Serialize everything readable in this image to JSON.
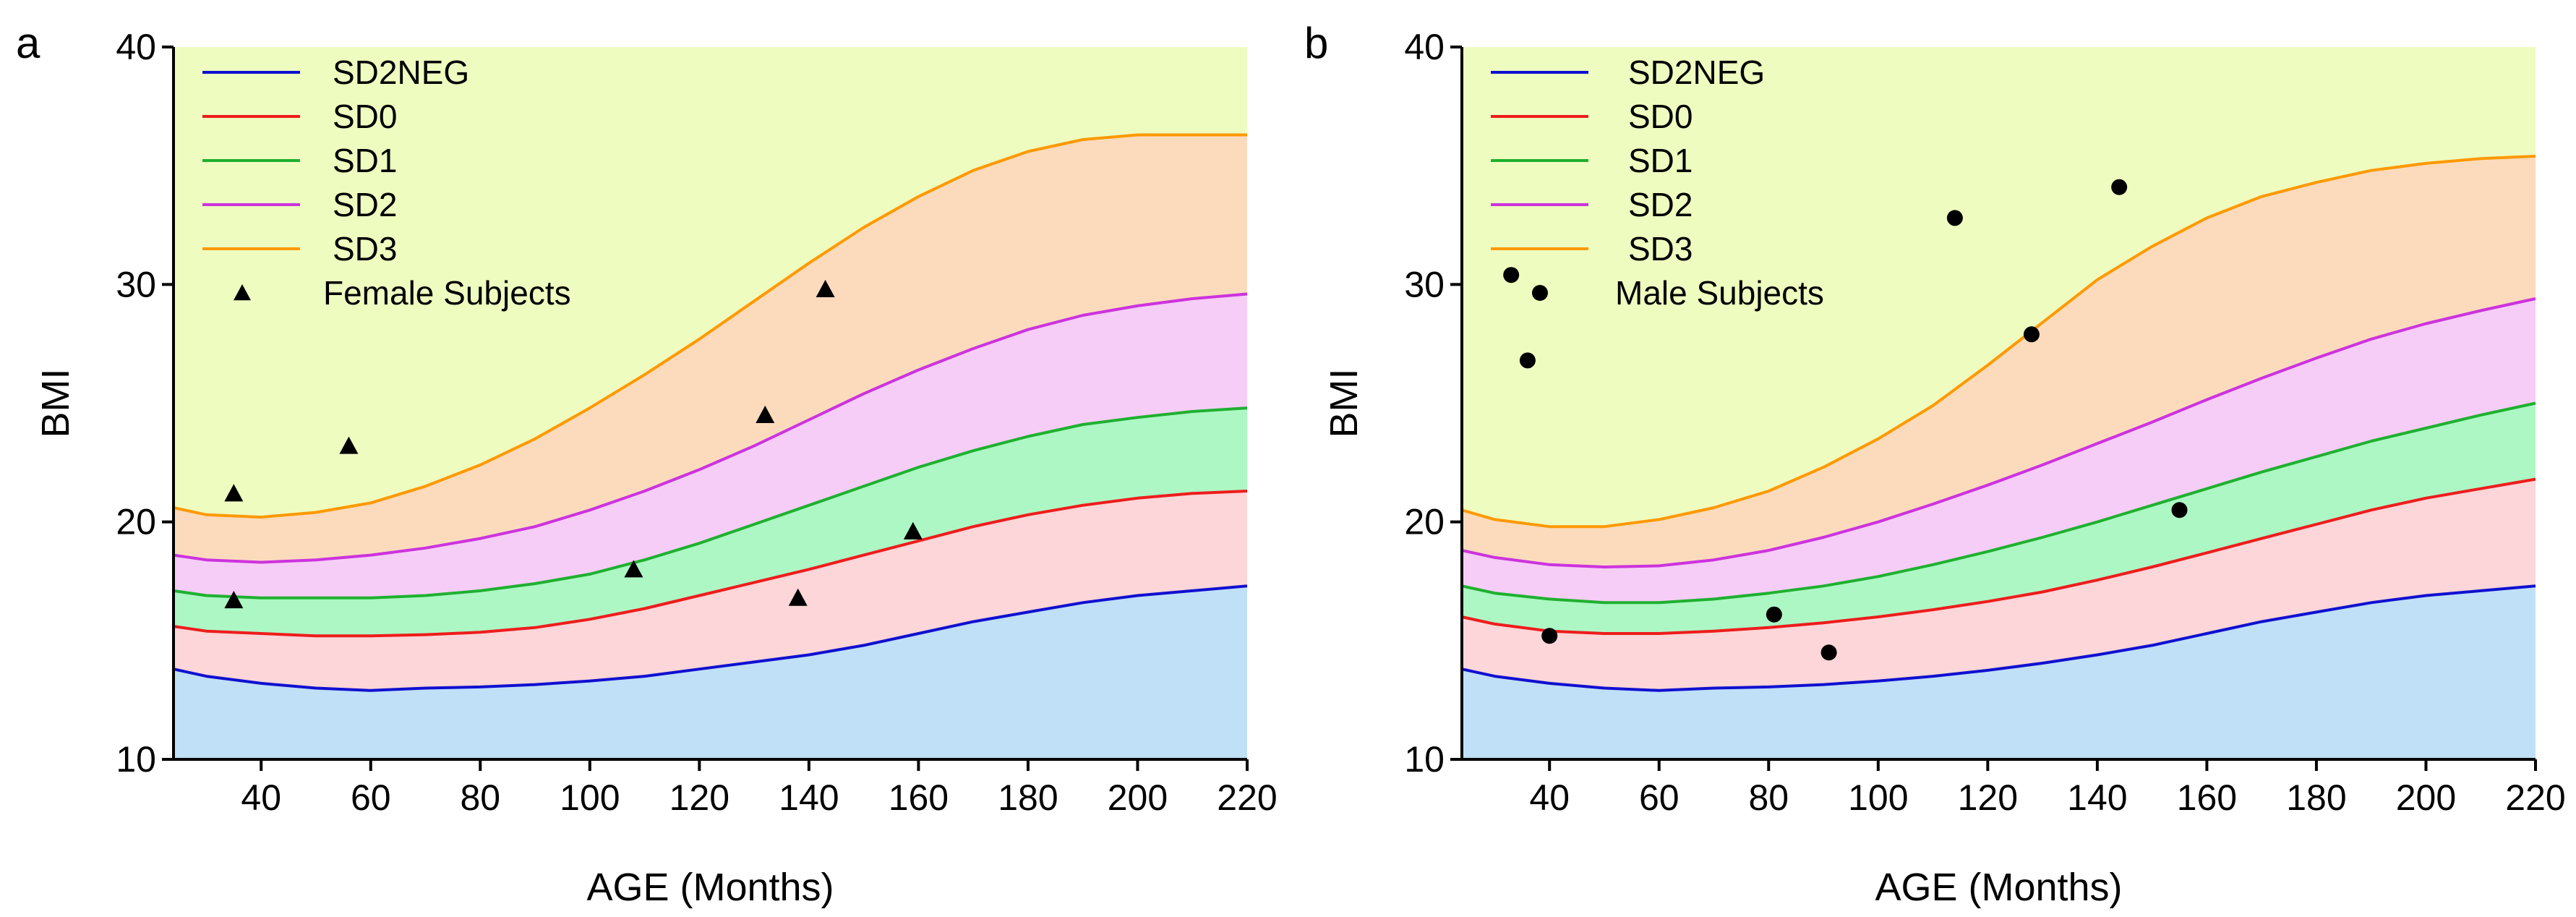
{
  "chart_data": [
    {
      "type": "area",
      "panel_label": "a",
      "xlabel": "AGE (Months)",
      "ylabel": "BMI",
      "xlim": [
        24,
        220
      ],
      "ylim": [
        10,
        40
      ],
      "xticks": [
        40,
        60,
        80,
        100,
        120,
        140,
        160,
        180,
        200,
        220
      ],
      "yticks": [
        10,
        20,
        30,
        40
      ],
      "legend_position": "top-left",
      "background_color": "#eefcc0",
      "x": [
        24,
        30,
        40,
        50,
        60,
        70,
        80,
        90,
        100,
        110,
        120,
        130,
        140,
        150,
        160,
        170,
        180,
        190,
        200,
        210,
        220
      ],
      "series": [
        {
          "name": "SD2NEG",
          "color": "#1010d0",
          "fill": "#bfe0f7",
          "values": [
            13.8,
            13.5,
            13.2,
            13.0,
            12.9,
            13.0,
            13.05,
            13.15,
            13.3,
            13.5,
            13.8,
            14.1,
            14.4,
            14.8,
            15.3,
            15.8,
            16.2,
            16.6,
            16.9,
            17.1,
            17.3
          ]
        },
        {
          "name": "SD0",
          "color": "#ee1c1c",
          "fill": "#fcd6d8",
          "values": [
            15.6,
            15.4,
            15.3,
            15.2,
            15.2,
            15.25,
            15.35,
            15.55,
            15.9,
            16.35,
            16.9,
            17.45,
            18.0,
            18.6,
            19.2,
            19.8,
            20.3,
            20.7,
            21.0,
            21.2,
            21.3
          ]
        },
        {
          "name": "SD1",
          "color": "#1fb030",
          "fill": "#adf7c4",
          "values": [
            17.1,
            16.9,
            16.8,
            16.8,
            16.8,
            16.9,
            17.1,
            17.4,
            17.8,
            18.4,
            19.1,
            19.9,
            20.7,
            21.5,
            22.3,
            23.0,
            23.6,
            24.1,
            24.4,
            24.65,
            24.8
          ]
        },
        {
          "name": "SD2",
          "color": "#cc33dd",
          "fill": "#f6cdf6",
          "values": [
            18.6,
            18.4,
            18.3,
            18.4,
            18.6,
            18.9,
            19.3,
            19.8,
            20.5,
            21.3,
            22.2,
            23.2,
            24.3,
            25.4,
            26.4,
            27.3,
            28.1,
            28.7,
            29.1,
            29.4,
            29.6
          ]
        },
        {
          "name": "SD3",
          "color": "#ff9900",
          "fill": "#fcdbbd",
          "values": [
            20.6,
            20.3,
            20.2,
            20.4,
            20.8,
            21.5,
            22.4,
            23.5,
            24.8,
            26.2,
            27.7,
            29.3,
            30.9,
            32.4,
            33.7,
            34.8,
            35.6,
            36.1,
            36.3,
            36.3,
            36.3
          ]
        }
      ],
      "subjects": {
        "name": "Female Subjects",
        "marker": "triangle",
        "points": [
          {
            "x": 35,
            "y": 21.2
          },
          {
            "x": 35,
            "y": 16.7
          },
          {
            "x": 56,
            "y": 23.2
          },
          {
            "x": 108,
            "y": 18.0
          },
          {
            "x": 132,
            "y": 24.5
          },
          {
            "x": 138,
            "y": 16.8
          },
          {
            "x": 143,
            "y": 29.8
          },
          {
            "x": 159,
            "y": 19.6
          }
        ]
      }
    },
    {
      "type": "area",
      "panel_label": "b",
      "xlabel": "AGE (Months)",
      "ylabel": "BMI",
      "xlim": [
        24,
        220
      ],
      "ylim": [
        10,
        40
      ],
      "xticks": [
        40,
        60,
        80,
        100,
        120,
        140,
        160,
        180,
        200,
        220
      ],
      "yticks": [
        10,
        20,
        30,
        40
      ],
      "legend_position": "top-left",
      "background_color": "#eefcc0",
      "x": [
        24,
        30,
        40,
        50,
        60,
        70,
        80,
        90,
        100,
        110,
        120,
        130,
        140,
        150,
        160,
        170,
        180,
        190,
        200,
        210,
        220
      ],
      "series": [
        {
          "name": "SD2NEG",
          "color": "#1010d0",
          "fill": "#bfe0f7",
          "values": [
            13.8,
            13.5,
            13.2,
            13.0,
            12.9,
            13.0,
            13.05,
            13.15,
            13.3,
            13.5,
            13.75,
            14.05,
            14.4,
            14.8,
            15.3,
            15.8,
            16.2,
            16.6,
            16.9,
            17.1,
            17.3
          ]
        },
        {
          "name": "SD0",
          "color": "#ee1c1c",
          "fill": "#fcd6d8",
          "values": [
            16.0,
            15.7,
            15.4,
            15.3,
            15.3,
            15.4,
            15.55,
            15.75,
            16.0,
            16.3,
            16.65,
            17.05,
            17.55,
            18.1,
            18.7,
            19.3,
            19.9,
            20.5,
            21.0,
            21.4,
            21.8
          ]
        },
        {
          "name": "SD1",
          "color": "#1fb030",
          "fill": "#adf7c4",
          "values": [
            17.3,
            17.0,
            16.75,
            16.6,
            16.6,
            16.75,
            17.0,
            17.3,
            17.7,
            18.2,
            18.75,
            19.35,
            20.0,
            20.7,
            21.4,
            22.1,
            22.75,
            23.4,
            23.95,
            24.5,
            25.0
          ]
        },
        {
          "name": "SD2",
          "color": "#cc33dd",
          "fill": "#f6cdf6",
          "values": [
            18.8,
            18.5,
            18.2,
            18.1,
            18.15,
            18.4,
            18.8,
            19.35,
            20.0,
            20.75,
            21.55,
            22.4,
            23.3,
            24.2,
            25.15,
            26.05,
            26.9,
            27.7,
            28.35,
            28.9,
            29.4
          ]
        },
        {
          "name": "SD3",
          "color": "#ff9900",
          "fill": "#fcdbbd",
          "values": [
            20.5,
            20.1,
            19.8,
            19.8,
            20.1,
            20.6,
            21.3,
            22.3,
            23.5,
            24.9,
            26.6,
            28.4,
            30.2,
            31.6,
            32.8,
            33.7,
            34.3,
            34.8,
            35.1,
            35.3,
            35.4
          ]
        }
      ],
      "subjects": {
        "name": "Male Subjects",
        "marker": "circle",
        "points": [
          {
            "x": 33,
            "y": 30.4
          },
          {
            "x": 36,
            "y": 26.8
          },
          {
            "x": 40,
            "y": 15.2
          },
          {
            "x": 81,
            "y": 16.1
          },
          {
            "x": 91,
            "y": 14.5
          },
          {
            "x": 114,
            "y": 32.8
          },
          {
            "x": 128,
            "y": 27.9
          },
          {
            "x": 144,
            "y": 34.1
          },
          {
            "x": 155,
            "y": 20.5
          }
        ]
      }
    }
  ]
}
